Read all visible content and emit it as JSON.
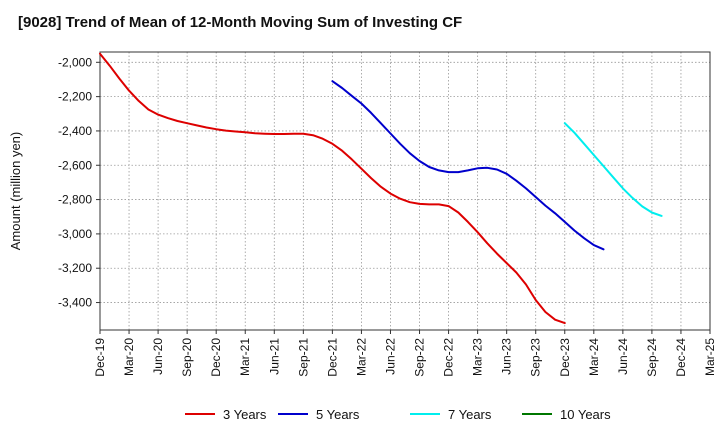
{
  "chart_data": {
    "type": "line",
    "title": "[9028]  Trend of Mean of 12-Month Moving Sum of Investing CF",
    "xlabel": "",
    "ylabel": "Amount (million yen)",
    "ylim": [
      -3560,
      -1940
    ],
    "yticks": [
      -2000,
      -2200,
      -2400,
      -2600,
      -2800,
      -3000,
      -3200,
      -3400
    ],
    "ytick_labels": [
      "-2,000",
      "-2,200",
      "-2,400",
      "-2,600",
      "-2,800",
      "-3,000",
      "-3,200",
      "-3,400"
    ],
    "x_categories": [
      "Dec-19",
      "Mar-20",
      "Jun-20",
      "Sep-20",
      "Dec-20",
      "Mar-21",
      "Jun-21",
      "Sep-21",
      "Dec-21",
      "Mar-22",
      "Jun-22",
      "Sep-22",
      "Dec-22",
      "Mar-23",
      "Jun-23",
      "Sep-23",
      "Dec-23",
      "Mar-24",
      "Jun-24",
      "Sep-24",
      "Dec-24",
      "Mar-25"
    ],
    "grid": true,
    "legend_position": "bottom",
    "series": [
      {
        "name": "3 Years",
        "color": "#dd0000",
        "start_index": 0,
        "values": [
          -1950,
          -2020,
          -2095,
          -2165,
          -2225,
          -2275,
          -2305,
          -2325,
          -2342,
          -2355,
          -2368,
          -2380,
          -2390,
          -2398,
          -2403,
          -2408,
          -2413,
          -2416,
          -2418,
          -2418,
          -2416,
          -2416,
          -2425,
          -2445,
          -2475,
          -2515,
          -2565,
          -2620,
          -2675,
          -2725,
          -2765,
          -2795,
          -2815,
          -2825,
          -2828,
          -2828,
          -2838,
          -2875,
          -2930,
          -2990,
          -3055,
          -3115,
          -3170,
          -3225,
          -3295,
          -3385,
          -3455,
          -3500,
          -3520
        ]
      },
      {
        "name": "5 Years",
        "color": "#0000cc",
        "start_index": 24,
        "values": [
          -2110,
          -2150,
          -2195,
          -2240,
          -2295,
          -2355,
          -2415,
          -2475,
          -2530,
          -2575,
          -2610,
          -2630,
          -2640,
          -2640,
          -2630,
          -2618,
          -2615,
          -2625,
          -2650,
          -2690,
          -2735,
          -2785,
          -2835,
          -2880,
          -2930,
          -2980,
          -3025,
          -3065,
          -3090
        ]
      },
      {
        "name": "7 Years",
        "color": "#00eeee",
        "start_index": 48,
        "values": [
          -2355,
          -2410,
          -2475,
          -2540,
          -2605,
          -2670,
          -2735,
          -2790,
          -2840,
          -2875,
          -2895
        ]
      },
      {
        "name": "10 Years",
        "color": "#007700",
        "start_index": 0,
        "values": []
      }
    ]
  }
}
